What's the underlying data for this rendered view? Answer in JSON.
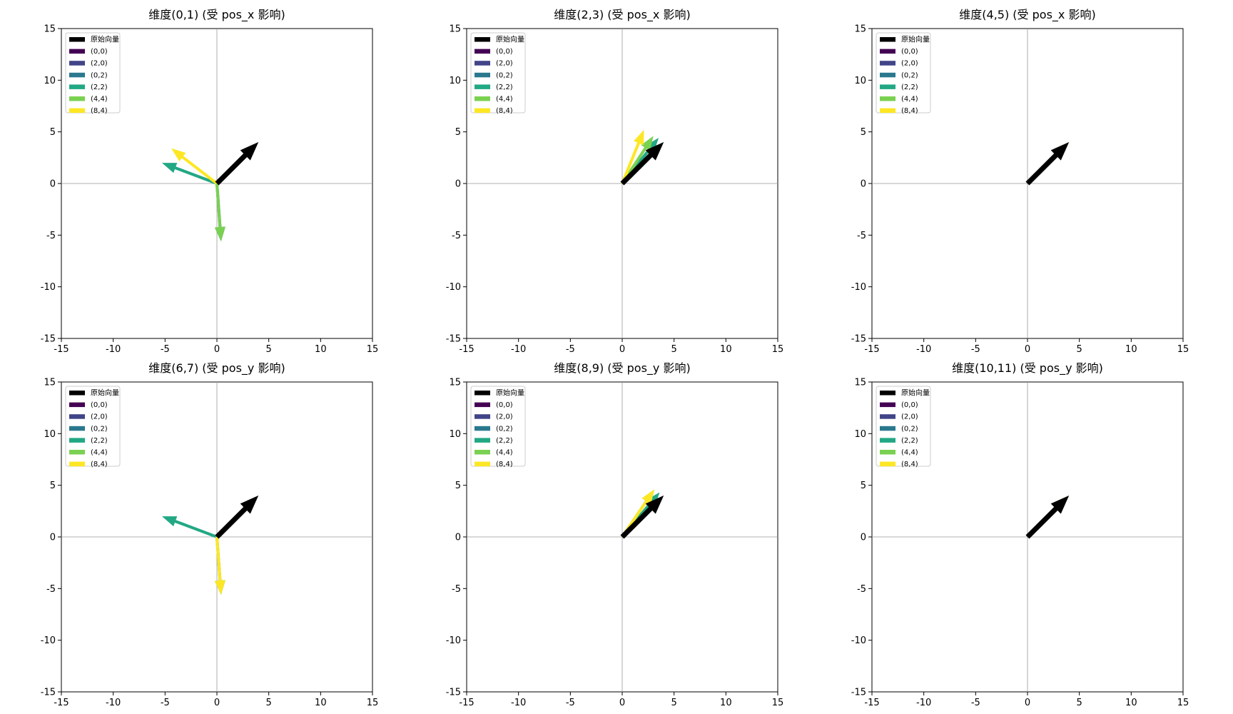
{
  "legend_entries": [
    {
      "label": "原始向量",
      "color": "#000000"
    },
    {
      "label": "(0,0)",
      "color": "#440154"
    },
    {
      "label": "(2,0)",
      "color": "#414487"
    },
    {
      "label": "(0,2)",
      "color": "#2a788e"
    },
    {
      "label": "(2,2)",
      "color": "#22a884"
    },
    {
      "label": "(4,4)",
      "color": "#7ad151"
    },
    {
      "label": "(8,4)",
      "color": "#fde725"
    }
  ],
  "chart_data": [
    {
      "type": "quiver",
      "title": "维度(0,1) (受 pos_x 影响)",
      "xlim": [
        -15,
        15
      ],
      "ylim": [
        -15,
        15
      ],
      "xticks": [
        -15,
        -10,
        -5,
        0,
        5,
        10,
        15
      ],
      "yticks": [
        -15,
        -10,
        -5,
        0,
        5,
        10,
        15
      ],
      "legend_position": "upper-left",
      "vectors": [
        {
          "name": "原始向量",
          "color": "#000000",
          "x": 4,
          "y": 4
        },
        {
          "name": "(0,0)",
          "color": "#440154",
          "x": 4,
          "y": 4
        },
        {
          "name": "(2,0)",
          "color": "#414487",
          "x": 0.4,
          "y": -5.6
        },
        {
          "name": "(0,2)",
          "color": "#2a788e",
          "x": 4,
          "y": 4
        },
        {
          "name": "(2,2)",
          "color": "#22a884",
          "x": -5.3,
          "y": 2.0
        },
        {
          "name": "(4,4)",
          "color": "#7ad151",
          "x": 0.4,
          "y": -5.6
        },
        {
          "name": "(8,4)",
          "color": "#fde725",
          "x": -4.4,
          "y": 3.4
        }
      ]
    },
    {
      "type": "quiver",
      "title": "维度(2,3) (受 pos_x 影响)",
      "xlim": [
        -15,
        15
      ],
      "ylim": [
        -15,
        15
      ],
      "xticks": [
        -15,
        -10,
        -5,
        0,
        5,
        10,
        15
      ],
      "yticks": [
        -15,
        -10,
        -5,
        0,
        5,
        10,
        15
      ],
      "legend_position": "upper-left",
      "vectors": [
        {
          "name": "原始向量",
          "color": "#000000",
          "x": 4,
          "y": 4
        },
        {
          "name": "(0,0)",
          "color": "#440154",
          "x": 4,
          "y": 4
        },
        {
          "name": "(2,0)",
          "color": "#414487",
          "x": 3.5,
          "y": 4.4
        },
        {
          "name": "(0,2)",
          "color": "#2a788e",
          "x": 4,
          "y": 4
        },
        {
          "name": "(2,2)",
          "color": "#22a884",
          "x": 3.5,
          "y": 4.4
        },
        {
          "name": "(4,4)",
          "color": "#7ad151",
          "x": 3.0,
          "y": 4.6
        },
        {
          "name": "(8,4)",
          "color": "#fde725",
          "x": 2.1,
          "y": 5.2
        }
      ]
    },
    {
      "type": "quiver",
      "title": "维度(4,5) (受 pos_x 影响)",
      "xlim": [
        -15,
        15
      ],
      "ylim": [
        -15,
        15
      ],
      "xticks": [
        -15,
        -10,
        -5,
        0,
        5,
        10,
        15
      ],
      "yticks": [
        -15,
        -10,
        -5,
        0,
        5,
        10,
        15
      ],
      "legend_position": "upper-left",
      "vectors": [
        {
          "name": "原始向量",
          "color": "#000000",
          "x": 4,
          "y": 4
        },
        {
          "name": "(0,0)",
          "color": "#440154",
          "x": 4,
          "y": 4
        },
        {
          "name": "(2,0)",
          "color": "#414487",
          "x": 4,
          "y": 4
        },
        {
          "name": "(0,2)",
          "color": "#2a788e",
          "x": 4,
          "y": 4
        },
        {
          "name": "(2,2)",
          "color": "#22a884",
          "x": 4,
          "y": 4
        },
        {
          "name": "(4,4)",
          "color": "#7ad151",
          "x": 4,
          "y": 4
        },
        {
          "name": "(8,4)",
          "color": "#fde725",
          "x": 4,
          "y": 4
        }
      ]
    },
    {
      "type": "quiver",
      "title": "维度(6,7) (受 pos_y 影响)",
      "xlim": [
        -15,
        15
      ],
      "ylim": [
        -15,
        15
      ],
      "xticks": [
        -15,
        -10,
        -5,
        0,
        5,
        10,
        15
      ],
      "yticks": [
        -15,
        -10,
        -5,
        0,
        5,
        10,
        15
      ],
      "legend_position": "upper-left",
      "vectors": [
        {
          "name": "原始向量",
          "color": "#000000",
          "x": 4,
          "y": 4
        },
        {
          "name": "(0,0)",
          "color": "#440154",
          "x": 4,
          "y": 4
        },
        {
          "name": "(2,0)",
          "color": "#414487",
          "x": 4,
          "y": 4
        },
        {
          "name": "(0,2)",
          "color": "#2a788e",
          "x": 0.4,
          "y": -5.6
        },
        {
          "name": "(2,2)",
          "color": "#22a884",
          "x": -5.3,
          "y": 2.0
        },
        {
          "name": "(4,4)",
          "color": "#7ad151",
          "x": 0.4,
          "y": -5.6
        },
        {
          "name": "(8,4)",
          "color": "#fde725",
          "x": 0.4,
          "y": -5.6
        }
      ]
    },
    {
      "type": "quiver",
      "title": "维度(8,9) (受 pos_y 影响)",
      "xlim": [
        -15,
        15
      ],
      "ylim": [
        -15,
        15
      ],
      "xticks": [
        -15,
        -10,
        -5,
        0,
        5,
        10,
        15
      ],
      "yticks": [
        -15,
        -10,
        -5,
        0,
        5,
        10,
        15
      ],
      "legend_position": "upper-left",
      "vectors": [
        {
          "name": "原始向量",
          "color": "#000000",
          "x": 4,
          "y": 4
        },
        {
          "name": "(0,0)",
          "color": "#440154",
          "x": 4,
          "y": 4
        },
        {
          "name": "(2,0)",
          "color": "#414487",
          "x": 4,
          "y": 4
        },
        {
          "name": "(0,2)",
          "color": "#2a788e",
          "x": 3.6,
          "y": 4.3
        },
        {
          "name": "(2,2)",
          "color": "#22a884",
          "x": 3.6,
          "y": 4.3
        },
        {
          "name": "(4,4)",
          "color": "#7ad151",
          "x": 3.1,
          "y": 4.6
        },
        {
          "name": "(8,4)",
          "color": "#fde725",
          "x": 3.1,
          "y": 4.6
        }
      ]
    },
    {
      "type": "quiver",
      "title": "维度(10,11) (受 pos_y 影响)",
      "xlim": [
        -15,
        15
      ],
      "ylim": [
        -15,
        15
      ],
      "xticks": [
        -15,
        -10,
        -5,
        0,
        5,
        10,
        15
      ],
      "yticks": [
        -15,
        -10,
        -5,
        0,
        5,
        10,
        15
      ],
      "legend_position": "upper-left",
      "vectors": [
        {
          "name": "原始向量",
          "color": "#000000",
          "x": 4,
          "y": 4
        },
        {
          "name": "(0,0)",
          "color": "#440154",
          "x": 4,
          "y": 4
        },
        {
          "name": "(2,0)",
          "color": "#414487",
          "x": 4,
          "y": 4
        },
        {
          "name": "(0,2)",
          "color": "#2a788e",
          "x": 4,
          "y": 4
        },
        {
          "name": "(2,2)",
          "color": "#22a884",
          "x": 4,
          "y": 4
        },
        {
          "name": "(4,4)",
          "color": "#7ad151",
          "x": 4,
          "y": 4
        },
        {
          "name": "(8,4)",
          "color": "#fde725",
          "x": 4,
          "y": 4
        }
      ]
    }
  ]
}
